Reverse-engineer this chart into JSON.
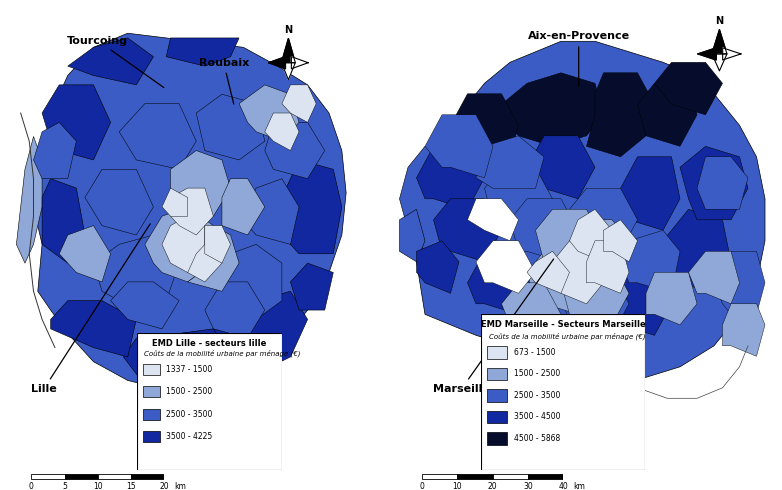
{
  "left_map": {
    "title": "EMD Lille - secteurs lille",
    "subtitle": "Coûts de la mobilité urbaine par ménage (€)",
    "legend_entries": [
      {
        "label": "1337 - 1500",
        "color": "#dce4f2"
      },
      {
        "label": "1500 - 2500",
        "color": "#8fa8d8"
      },
      {
        "label": "2500 - 3500",
        "color": "#3b5cc4"
      },
      {
        "label": "3500 - 4225",
        "color": "#1228a0"
      }
    ],
    "scale_ticks": [
      0,
      5,
      10,
      15,
      20
    ],
    "scale_unit": "km"
  },
  "right_map": {
    "title": "EMD Marseille - Secteurs Marseille",
    "subtitle": "Coûts de la mobilité urbaine par ménage (€)",
    "legend_entries": [
      {
        "label": "673 - 1500",
        "color": "#dce4f2"
      },
      {
        "label": "1500 - 2500",
        "color": "#8fa8d8"
      },
      {
        "label": "2500 - 3500",
        "color": "#3b5cc4"
      },
      {
        "label": "3500 - 4500",
        "color": "#1228a0"
      },
      {
        "label": "4500 - 5868",
        "color": "#060c2c"
      }
    ],
    "scale_ticks": [
      0,
      10,
      20,
      30,
      40
    ],
    "scale_unit": "km"
  },
  "bg_color": "#ffffff",
  "colors": {
    "c1": "#dce4f2",
    "c2": "#8fa8d8",
    "c3": "#3b5cc4",
    "c4": "#1228a0",
    "c5": "#060c2c"
  }
}
